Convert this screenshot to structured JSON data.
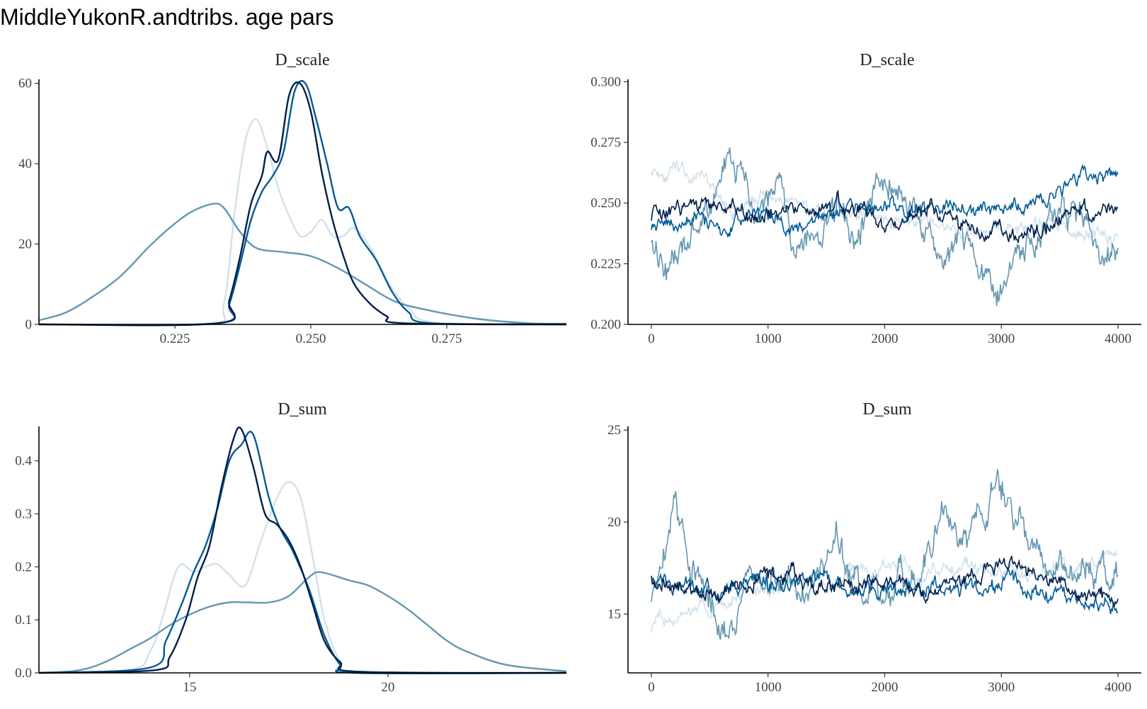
{
  "title": "MiddleYukonR.andtribs. age pars",
  "colors": {
    "chain1": "#d1e1ec",
    "chain2": "#6497b1",
    "chain3": "#005b96",
    "chain4": "#011f4b"
  },
  "chart_data": [
    {
      "type": "line",
      "subtype": "density",
      "title": "D_scale",
      "xlim": [
        0.2,
        0.297
      ],
      "ylim": [
        0,
        61
      ],
      "xticks": [
        0.225,
        0.25,
        0.275
      ],
      "xtick_labels": [
        "0.225",
        "0.250",
        "0.275"
      ],
      "yticks": [
        0,
        20,
        40,
        60
      ],
      "ytick_labels": [
        "0",
        "20",
        "40",
        "60"
      ],
      "grid": false,
      "series": [
        {
          "color_key": "chain1",
          "x": [
            0.2,
            0.231,
            0.234,
            0.236,
            0.238,
            0.24,
            0.242,
            0.244,
            0.246,
            0.248,
            0.25,
            0.252,
            0.254,
            0.256,
            0.258,
            0.261,
            0.264,
            0.268,
            0.273,
            0.297
          ],
          "y": [
            0,
            0.3,
            5,
            28,
            46,
            51,
            44,
            34,
            27,
            22,
            23,
            26,
            22,
            22,
            24,
            19,
            11,
            4,
            0.5,
            0
          ]
        },
        {
          "color_key": "chain2",
          "x": [
            0.2,
            0.205,
            0.21,
            0.215,
            0.22,
            0.224,
            0.228,
            0.232,
            0.234,
            0.237,
            0.24,
            0.245,
            0.25,
            0.255,
            0.26,
            0.265,
            0.27,
            0.28,
            0.29,
            0.297
          ],
          "y": [
            1,
            3,
            7,
            12,
            19,
            24,
            28,
            30,
            29,
            23,
            19,
            18,
            17,
            14,
            10,
            6,
            4,
            1.5,
            0.3,
            0.2
          ]
        },
        {
          "color_key": "chain3",
          "x": [
            0.2,
            0.233,
            0.235,
            0.237,
            0.239,
            0.241,
            0.243,
            0.245,
            0.247,
            0.249,
            0.251,
            0.253,
            0.255,
            0.257,
            0.259,
            0.262,
            0.265,
            0.268,
            0.272,
            0.297
          ],
          "y": [
            0,
            0.3,
            5,
            15,
            26,
            33,
            37,
            43,
            58,
            60,
            51,
            40,
            29,
            29,
            22,
            16,
            8,
            3,
            0.3,
            0
          ]
        },
        {
          "color_key": "chain4",
          "x": [
            0.2,
            0.233,
            0.235,
            0.237,
            0.239,
            0.241,
            0.242,
            0.244,
            0.246,
            0.248,
            0.25,
            0.252,
            0.254,
            0.256,
            0.258,
            0.261,
            0.264,
            0.267,
            0.297
          ],
          "y": [
            0,
            0.3,
            6,
            17,
            30,
            37,
            43,
            41,
            57,
            60,
            53,
            38,
            26,
            17,
            10,
            5,
            2,
            0.3,
            0
          ]
        }
      ]
    },
    {
      "type": "line",
      "subtype": "trace",
      "title": "D_scale",
      "xlim": [
        -200,
        4200
      ],
      "ylim": [
        0.2,
        0.301
      ],
      "xticks": [
        0,
        1000,
        2000,
        3000,
        4000
      ],
      "xtick_labels": [
        "0",
        "1000",
        "2000",
        "3000",
        "4000"
      ],
      "yticks": [
        0.2,
        0.225,
        0.25,
        0.275,
        0.3
      ],
      "ytick_labels": [
        "0.200",
        "0.225",
        "0.250",
        "0.275",
        "0.300"
      ],
      "iterations": 4000,
      "grid": false,
      "series": [
        {
          "color_key": "chain1",
          "anchors": [
            [
              0,
              0.265
            ],
            [
              200,
              0.262
            ],
            [
              500,
              0.258
            ],
            [
              700,
              0.245
            ],
            [
              1000,
              0.253
            ],
            [
              1300,
              0.25
            ],
            [
              1600,
              0.244
            ],
            [
              2000,
              0.245
            ],
            [
              2300,
              0.24
            ],
            [
              2600,
              0.238
            ],
            [
              3000,
              0.24
            ],
            [
              3400,
              0.24
            ],
            [
              3800,
              0.241
            ],
            [
              4000,
              0.236
            ]
          ],
          "noise": 0.004,
          "seed": 11
        },
        {
          "color_key": "chain2",
          "anchors": [
            [
              0,
              0.24
            ],
            [
              150,
              0.22
            ],
            [
              350,
              0.235
            ],
            [
              500,
              0.25
            ],
            [
              700,
              0.265
            ],
            [
              900,
              0.245
            ],
            [
              1050,
              0.255
            ],
            [
              1200,
              0.24
            ],
            [
              1400,
              0.232
            ],
            [
              1600,
              0.25
            ],
            [
              1750,
              0.23
            ],
            [
              1900,
              0.25
            ],
            [
              2050,
              0.265
            ],
            [
              2200,
              0.25
            ],
            [
              2400,
              0.235
            ],
            [
              2600,
              0.225
            ],
            [
              2800,
              0.23
            ],
            [
              2950,
              0.212
            ],
            [
              3100,
              0.228
            ],
            [
              3300,
              0.235
            ],
            [
              3500,
              0.245
            ],
            [
              3700,
              0.24
            ],
            [
              4000,
              0.233
            ]
          ],
          "noise": 0.008,
          "seed": 23
        },
        {
          "color_key": "chain3",
          "anchors": [
            [
              0,
              0.24
            ],
            [
              300,
              0.244
            ],
            [
              600,
              0.238
            ],
            [
              900,
              0.248
            ],
            [
              1200,
              0.24
            ],
            [
              1500,
              0.246
            ],
            [
              1900,
              0.252
            ],
            [
              2200,
              0.245
            ],
            [
              2600,
              0.248
            ],
            [
              3000,
              0.25
            ],
            [
              3400,
              0.252
            ],
            [
              3700,
              0.26
            ],
            [
              4000,
              0.262
            ]
          ],
          "noise": 0.004,
          "seed": 37
        },
        {
          "color_key": "chain4",
          "anchors": [
            [
              0,
              0.245
            ],
            [
              300,
              0.248
            ],
            [
              600,
              0.252
            ],
            [
              900,
              0.244
            ],
            [
              1200,
              0.246
            ],
            [
              1600,
              0.25
            ],
            [
              2000,
              0.243
            ],
            [
              2400,
              0.246
            ],
            [
              2800,
              0.24
            ],
            [
              3200,
              0.236
            ],
            [
              3600,
              0.246
            ],
            [
              4000,
              0.25
            ]
          ],
          "noise": 0.004,
          "seed": 41
        }
      ]
    },
    {
      "type": "line",
      "subtype": "density",
      "title": "D_sum",
      "xlim": [
        11.2,
        24.5
      ],
      "ylim": [
        0,
        0.465
      ],
      "xticks": [
        15,
        20
      ],
      "xtick_labels": [
        "15",
        "20"
      ],
      "yticks": [
        0,
        0.1,
        0.2,
        0.3,
        0.4
      ],
      "ytick_labels": [
        "0.0",
        "0.1",
        "0.2",
        "0.3",
        "0.4"
      ],
      "grid": false,
      "series": [
        {
          "color_key": "chain1",
          "x": [
            11.2,
            13.5,
            14,
            14.3,
            14.6,
            14.8,
            15.1,
            15.4,
            15.7,
            16,
            16.4,
            16.8,
            17.2,
            17.5,
            17.8,
            18.1,
            18.4,
            18.8,
            19.2,
            24.5
          ],
          "y": [
            0,
            0.005,
            0.04,
            0.1,
            0.18,
            0.205,
            0.19,
            0.2,
            0.205,
            0.185,
            0.165,
            0.25,
            0.33,
            0.36,
            0.33,
            0.22,
            0.1,
            0.02,
            0.003,
            0
          ]
        },
        {
          "color_key": "chain2",
          "x": [
            11.2,
            12,
            12.5,
            13,
            13.5,
            14,
            14.5,
            15,
            15.5,
            16,
            16.5,
            17,
            17.5,
            18,
            18.3,
            19,
            19.5,
            20,
            20.5,
            21,
            21.5,
            22,
            23,
            24.5
          ],
          "y": [
            0,
            0.003,
            0.01,
            0.025,
            0.045,
            0.065,
            0.09,
            0.11,
            0.125,
            0.133,
            0.133,
            0.133,
            0.145,
            0.18,
            0.19,
            0.175,
            0.165,
            0.145,
            0.12,
            0.09,
            0.06,
            0.04,
            0.015,
            0.003
          ]
        },
        {
          "color_key": "chain3",
          "x": [
            11.2,
            14,
            14.4,
            14.8,
            15.1,
            15.4,
            15.7,
            16,
            16.3,
            16.6,
            17,
            17.3,
            17.6,
            18,
            18.4,
            18.8,
            19.2,
            24.5
          ],
          "y": [
            0,
            0.01,
            0.06,
            0.13,
            0.19,
            0.24,
            0.31,
            0.4,
            0.43,
            0.45,
            0.33,
            0.27,
            0.23,
            0.16,
            0.07,
            0.015,
            0,
            0
          ]
        },
        {
          "color_key": "chain4",
          "x": [
            11.2,
            14.1,
            14.5,
            14.9,
            15.2,
            15.5,
            15.8,
            16.1,
            16.3,
            16.6,
            16.9,
            17.2,
            17.5,
            17.8,
            18.1,
            18.4,
            18.8,
            19.3,
            24.5
          ],
          "y": [
            0,
            0.005,
            0.03,
            0.1,
            0.18,
            0.24,
            0.35,
            0.44,
            0.46,
            0.39,
            0.3,
            0.28,
            0.25,
            0.2,
            0.13,
            0.06,
            0.02,
            0.002,
            0
          ]
        }
      ]
    },
    {
      "type": "line",
      "subtype": "trace",
      "title": "D_sum",
      "xlim": [
        -200,
        4200
      ],
      "ylim": [
        11.8,
        25.2
      ],
      "xticks": [
        0,
        1000,
        2000,
        3000,
        4000
      ],
      "xtick_labels": [
        "0",
        "1000",
        "2000",
        "3000",
        "4000"
      ],
      "yticks": [
        15,
        20,
        25
      ],
      "ytick_labels": [
        "15",
        "20",
        "25"
      ],
      "iterations": 4000,
      "grid": false,
      "series": [
        {
          "color_key": "chain1",
          "anchors": [
            [
              0,
              14.2
            ],
            [
              300,
              14.8
            ],
            [
              500,
              15.5
            ],
            [
              700,
              16
            ],
            [
              1000,
              16.5
            ],
            [
              1300,
              16.8
            ],
            [
              1600,
              17
            ],
            [
              2000,
              17.5
            ],
            [
              2300,
              17.2
            ],
            [
              2600,
              17.5
            ],
            [
              3000,
              17.2
            ],
            [
              3400,
              17.4
            ],
            [
              3800,
              17.6
            ],
            [
              4000,
              18
            ]
          ],
          "noise": 0.5,
          "seed": 13
        },
        {
          "color_key": "chain2",
          "anchors": [
            [
              0,
              16
            ],
            [
              100,
              19
            ],
            [
              200,
              21
            ],
            [
              350,
              18
            ],
            [
              500,
              16
            ],
            [
              700,
              14.5
            ],
            [
              800,
              16
            ],
            [
              1000,
              17
            ],
            [
              1200,
              17.5
            ],
            [
              1400,
              16.5
            ],
            [
              1600,
              18.5
            ],
            [
              1800,
              16
            ],
            [
              1900,
              18
            ],
            [
              2000,
              15
            ],
            [
              2100,
              16.5
            ],
            [
              2300,
              17.5
            ],
            [
              2500,
              19.5
            ],
            [
              2700,
              19
            ],
            [
              2900,
              21.5
            ],
            [
              3000,
              22
            ],
            [
              3200,
              19
            ],
            [
              3400,
              18
            ],
            [
              3600,
              17.5
            ],
            [
              3800,
              17.5
            ],
            [
              4000,
              18
            ]
          ],
          "noise": 1.1,
          "seed": 29
        },
        {
          "color_key": "chain3",
          "anchors": [
            [
              0,
              17
            ],
            [
              300,
              16.5
            ],
            [
              600,
              16
            ],
            [
              900,
              16.8
            ],
            [
              1200,
              16.4
            ],
            [
              1500,
              17
            ],
            [
              1900,
              16.2
            ],
            [
              2200,
              16.8
            ],
            [
              2600,
              16.3
            ],
            [
              3000,
              16.5
            ],
            [
              3400,
              16
            ],
            [
              3700,
              15.8
            ],
            [
              4000,
              15
            ]
          ],
          "noise": 0.55,
          "seed": 43
        },
        {
          "color_key": "chain4",
          "anchors": [
            [
              0,
              17.2
            ],
            [
              300,
              16.5
            ],
            [
              600,
              16
            ],
            [
              900,
              16.8
            ],
            [
              1200,
              17.2
            ],
            [
              1500,
              16.4
            ],
            [
              1900,
              16.8
            ],
            [
              2200,
              16.4
            ],
            [
              2600,
              16.7
            ],
            [
              3000,
              17.8
            ],
            [
              3300,
              17
            ],
            [
              3600,
              16.2
            ],
            [
              4000,
              16
            ]
          ],
          "noise": 0.55,
          "seed": 53
        }
      ]
    }
  ]
}
